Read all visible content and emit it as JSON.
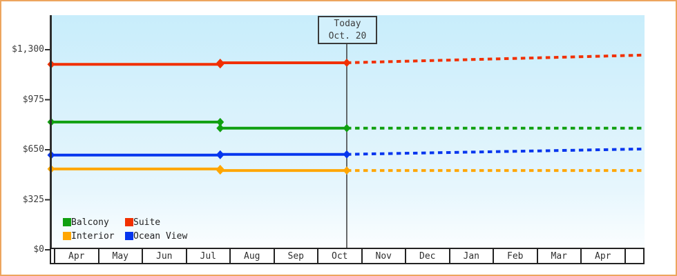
{
  "window": {
    "frame_border_color": "#eda55e",
    "plot_bg_top": "#c8edfb",
    "plot_bg_bottom": "#fbfeff",
    "axis_color": "#2e2e2e"
  },
  "today_box": {
    "line1": "Today",
    "line2": "Oct. 20"
  },
  "legend": [
    {
      "label": "Balcony",
      "color": "#10a010"
    },
    {
      "label": "Suite",
      "color": "#f13000"
    },
    {
      "label": "Interior",
      "color": "#ffa600"
    },
    {
      "label": "Ocean View",
      "color": "#0636ee"
    }
  ],
  "chart_data": {
    "type": "line",
    "title": "",
    "y_axis": {
      "ticks": [
        0,
        325,
        650,
        975,
        1300
      ],
      "tick_labels": [
        "$0",
        "$325",
        "$650",
        "$975",
        "$1,300"
      ],
      "ylim": [
        0,
        1300
      ],
      "unit": "USD"
    },
    "x_axis": {
      "months": [
        "Apr",
        "May",
        "Jun",
        "Jul",
        "Aug",
        "Sep",
        "Oct",
        "Nov",
        "Dec",
        "Jan",
        "Feb",
        "Mar",
        "Apr"
      ],
      "start_month_pos": -0.094,
      "step_month_pos": 3.76,
      "today_month_pos": 6.645,
      "end_month_pos": 13.43,
      "today_label": "Oct. 20"
    },
    "today": {
      "label_line1": "Today",
      "label_line2": "Oct. 20"
    },
    "series": [
      {
        "name": "Suite",
        "color": "#f13000",
        "history": [
          {
            "m": -0.094,
            "price": 1205
          },
          {
            "m": 3.76,
            "price": 1205
          },
          {
            "m": 3.76,
            "price": 1215
          },
          {
            "m": 6.645,
            "price": 1215
          }
        ],
        "forecast": [
          {
            "m": 6.645,
            "price": 1215
          },
          {
            "m": 13.43,
            "price": 1265
          }
        ]
      },
      {
        "name": "Balcony",
        "color": "#10a010",
        "history": [
          {
            "m": -0.094,
            "price": 830
          },
          {
            "m": 3.76,
            "price": 830
          },
          {
            "m": 3.76,
            "price": 790
          },
          {
            "m": 6.645,
            "price": 790
          }
        ],
        "forecast": [
          {
            "m": 6.645,
            "price": 790
          },
          {
            "m": 13.43,
            "price": 790
          }
        ]
      },
      {
        "name": "Ocean View",
        "color": "#0636ee",
        "history": [
          {
            "m": -0.094,
            "price": 615
          },
          {
            "m": 3.76,
            "price": 615
          },
          {
            "m": 3.76,
            "price": 620
          },
          {
            "m": 6.645,
            "price": 620
          }
        ],
        "forecast": [
          {
            "m": 6.645,
            "price": 620
          },
          {
            "m": 13.43,
            "price": 655
          }
        ]
      },
      {
        "name": "Interior",
        "color": "#ffa600",
        "history": [
          {
            "m": -0.094,
            "price": 525
          },
          {
            "m": 3.76,
            "price": 525
          },
          {
            "m": 3.76,
            "price": 515
          },
          {
            "m": 6.645,
            "price": 515
          }
        ],
        "forecast": [
          {
            "m": 6.645,
            "price": 515
          },
          {
            "m": 13.43,
            "price": 515
          }
        ]
      }
    ],
    "legend_position": "bottom-left-inside",
    "grid": false
  }
}
